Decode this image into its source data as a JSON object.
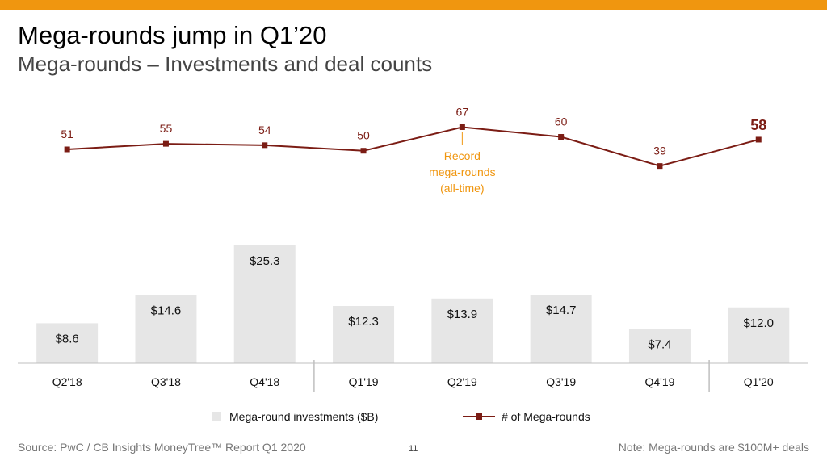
{
  "slide": {
    "title": "Mega-rounds jump in Q1’20",
    "subtitle": "Mega-rounds – Investments and deal counts",
    "source": "Source: PwC / CB Insights MoneyTree™ Report Q1 2020",
    "page_number": "11",
    "note": "Note: Mega-rounds are $100M+ deals",
    "colors": {
      "accent_bar": "#F0960F",
      "bars": "#E6E6E6",
      "line": "#7B1C14",
      "annotation": "#F0960F"
    }
  },
  "chart_data": {
    "type": "bar",
    "categories": [
      "Q2'18",
      "Q3'18",
      "Q4'18",
      "Q1'19",
      "Q2'19",
      "Q3'19",
      "Q4'19",
      "Q1'20"
    ],
    "series": [
      {
        "name": "Mega-round investments ($B)",
        "type": "bar",
        "values": [
          8.6,
          14.6,
          25.3,
          12.3,
          13.9,
          14.7,
          7.4,
          12.0
        ],
        "labels": [
          "$8.6",
          "$14.6",
          "$25.3",
          "$12.3",
          "$13.9",
          "$14.7",
          "$7.4",
          "$12.0"
        ]
      },
      {
        "name": "# of Mega-rounds",
        "type": "line",
        "values": [
          51,
          55,
          54,
          50,
          67,
          60,
          39,
          58
        ],
        "labels": [
          "51",
          "55",
          "54",
          "50",
          "67",
          "60",
          "39",
          "58"
        ]
      }
    ],
    "annotation": {
      "category": "Q2'19",
      "lines": [
        "Record",
        "mega-rounds",
        "(all-time)"
      ]
    },
    "highlight": {
      "category": "Q1'20"
    },
    "year_separators_after": [
      "Q4'18",
      "Q4'19"
    ],
    "legend_position": "bottom",
    "grid": false
  }
}
